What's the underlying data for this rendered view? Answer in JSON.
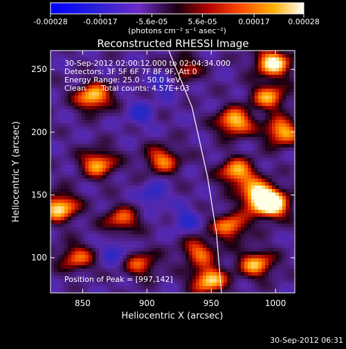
{
  "colorbar": {
    "ticks": [
      "-0.00028",
      "-0.00017",
      "-5.6e-05",
      "5.6e-05",
      "0.00017",
      "0.00028"
    ],
    "tick_values": [
      -0.00028,
      -0.00017,
      -5.6e-05,
      5.6e-05,
      0.00017,
      0.00028
    ],
    "unit_label": "(photons cm⁻² s⁻¹ asec⁻²)",
    "range": [
      -0.00028,
      0.00028
    ]
  },
  "annotations": {
    "time_range": "30-Sep-2012 02:00:12.000 to 02:04:34.000",
    "detectors": "Detectors: 3F 5F 6F 7F 8F 9F, Att 0",
    "energy": "Energy Range: 25.0 - 50.0 keV",
    "method": "Clean",
    "counts": "Total counts: 4.57E+03",
    "peak": "Position of Peak = [997,142]"
  },
  "footer_timestamp": "30-Sep-2012 06:31",
  "chart_data": {
    "type": "heatmap",
    "title": "Reconstructed RHESSI Image",
    "xlabel": "Heliocentric X (arcsec)",
    "ylabel": "Heliocentric Y (arcsec)",
    "xlim": [
      825,
      1015
    ],
    "ylim": [
      72,
      265
    ],
    "x_ticks": [
      850,
      900,
      950,
      1000
    ],
    "y_ticks": [
      100,
      150,
      200,
      250
    ],
    "peak_position": [
      997,
      142
    ],
    "limb_line": [
      [
        917,
        265
      ],
      [
        935,
        220
      ],
      [
        947,
        165
      ],
      [
        954,
        120
      ],
      [
        958,
        72
      ]
    ],
    "bright_regions": [
      {
        "x": 858,
        "y": 228,
        "intensity": 0.85
      },
      {
        "x": 832,
        "y": 140,
        "intensity": 0.9
      },
      {
        "x": 845,
        "y": 100,
        "intensity": 0.6
      },
      {
        "x": 862,
        "y": 175,
        "intensity": 0.75
      },
      {
        "x": 912,
        "y": 178,
        "intensity": 0.65
      },
      {
        "x": 968,
        "y": 208,
        "intensity": 0.85
      },
      {
        "x": 995,
        "y": 228,
        "intensity": 0.7
      },
      {
        "x": 998,
        "y": 255,
        "intensity": 0.95
      },
      {
        "x": 1005,
        "y": 200,
        "intensity": 0.8
      },
      {
        "x": 970,
        "y": 168,
        "intensity": 0.8
      },
      {
        "x": 987,
        "y": 150,
        "intensity": 0.9
      },
      {
        "x": 997,
        "y": 142,
        "intensity": 1.0
      },
      {
        "x": 965,
        "y": 125,
        "intensity": 0.7
      },
      {
        "x": 940,
        "y": 105,
        "intensity": 0.6
      },
      {
        "x": 948,
        "y": 82,
        "intensity": 0.85
      },
      {
        "x": 985,
        "y": 95,
        "intensity": 0.75
      },
      {
        "x": 895,
        "y": 95,
        "intensity": 0.55
      },
      {
        "x": 880,
        "y": 130,
        "intensity": 0.6
      },
      {
        "x": 928,
        "y": 250,
        "intensity": 0.5
      }
    ],
    "dark_regions": [
      {
        "x": 895,
        "y": 215
      },
      {
        "x": 905,
        "y": 150
      },
      {
        "x": 930,
        "y": 130
      },
      {
        "x": 875,
        "y": 105
      },
      {
        "x": 915,
        "y": 240
      }
    ]
  }
}
